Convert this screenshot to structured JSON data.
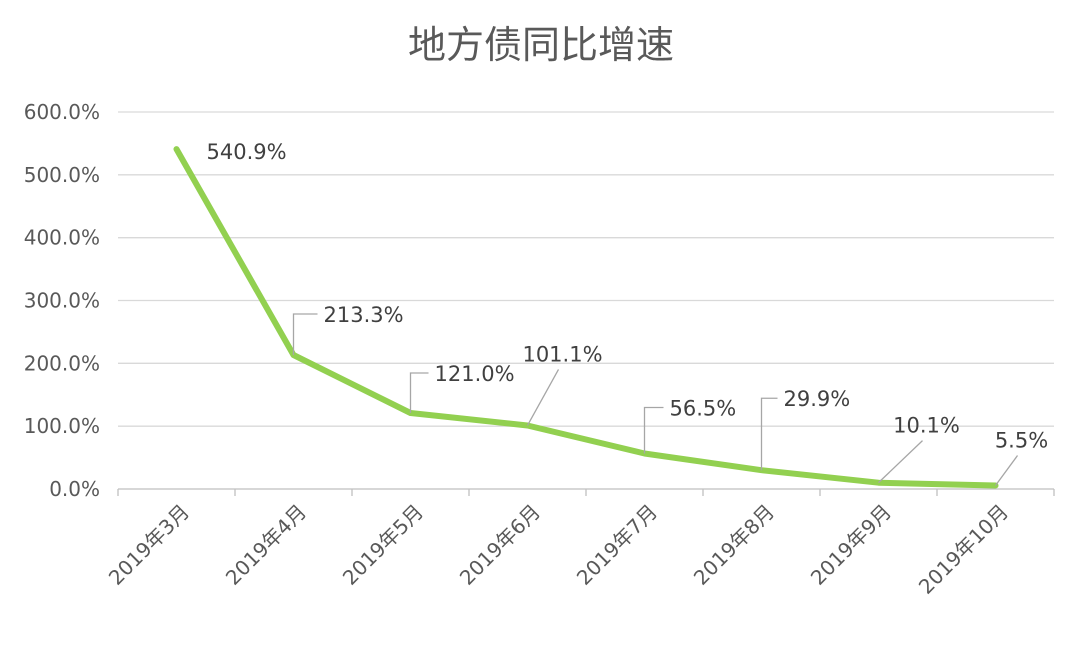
{
  "chart_data": {
    "type": "line",
    "title": "地方债同比增速",
    "categories": [
      "2019年3月",
      "2019年4月",
      "2019年5月",
      "2019年6月",
      "2019年7月",
      "2019年8月",
      "2019年9月",
      "2019年10月"
    ],
    "series": [
      {
        "values": [
          540.9,
          213.3,
          121.0,
          101.1,
          56.5,
          29.9,
          10.1,
          5.5
        ],
        "labels": [
          "540.9%",
          "213.3%",
          "121.0%",
          "101.1%",
          "56.5%",
          "29.9%",
          "10.1%",
          "5.5%"
        ],
        "color": "#92d050"
      }
    ],
    "ylim": [
      0,
      600
    ],
    "yticks": [
      0,
      100,
      200,
      300,
      400,
      500,
      600
    ],
    "ytick_labels": [
      "0.0%",
      "100.0%",
      "200.0%",
      "300.0%",
      "400.0%",
      "500.0%",
      "600.0%"
    ],
    "xlabel": "",
    "ylabel": "",
    "grid": true,
    "legend": "none"
  }
}
